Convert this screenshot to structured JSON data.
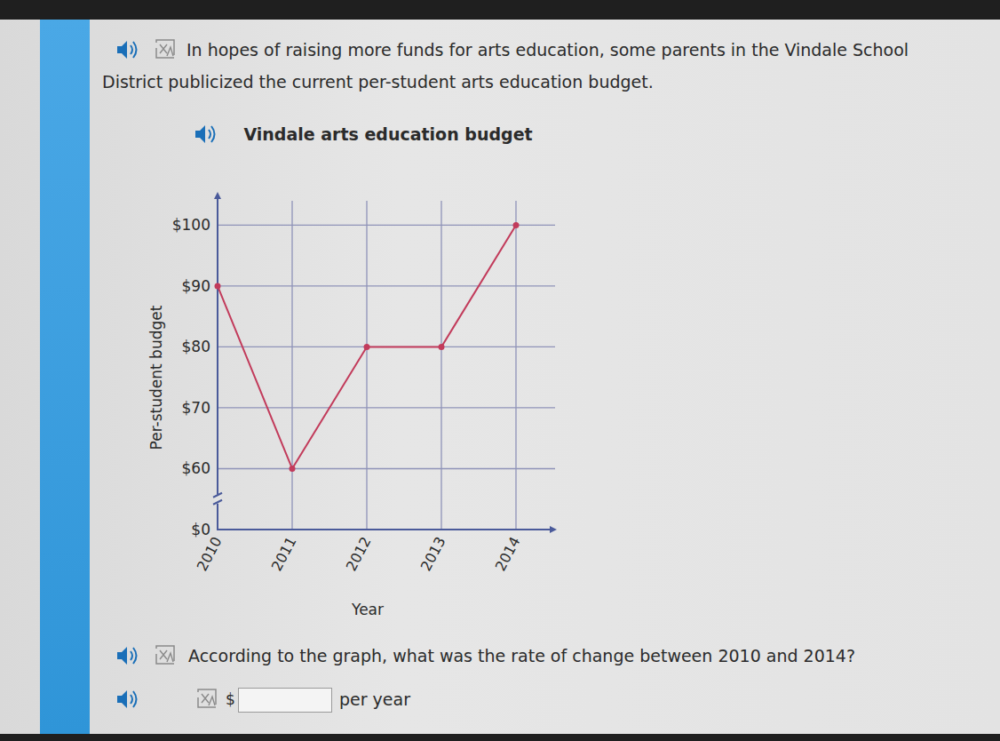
{
  "page": {
    "intro": "In hopes of raising more funds for arts education, some parents in the Vindale School District publicized the current per-student arts education budget.",
    "question": "According to the graph, what was the rate of change between 2010 and 2014?",
    "answer_prefix": "$",
    "answer_suffix": "per year"
  },
  "chart_data": {
    "type": "line",
    "title": "Vindale arts education budget",
    "x_label": "Year",
    "y_label": "Per-student budget",
    "categories": [
      "2010",
      "2011",
      "2012",
      "2013",
      "2014"
    ],
    "values": [
      90,
      60,
      80,
      80,
      100
    ],
    "color": "#c23b5b",
    "marker": "circle",
    "ylim": [
      0,
      104
    ],
    "yticks": [
      {
        "value": 0,
        "label": "$0"
      },
      {
        "value": 60,
        "label": "$60"
      },
      {
        "value": 70,
        "label": "$70"
      },
      {
        "value": 80,
        "label": "$80"
      },
      {
        "value": 90,
        "label": "$90"
      },
      {
        "value": 100,
        "label": "$100"
      }
    ],
    "y_break": [
      0,
      50
    ],
    "grid": true
  }
}
